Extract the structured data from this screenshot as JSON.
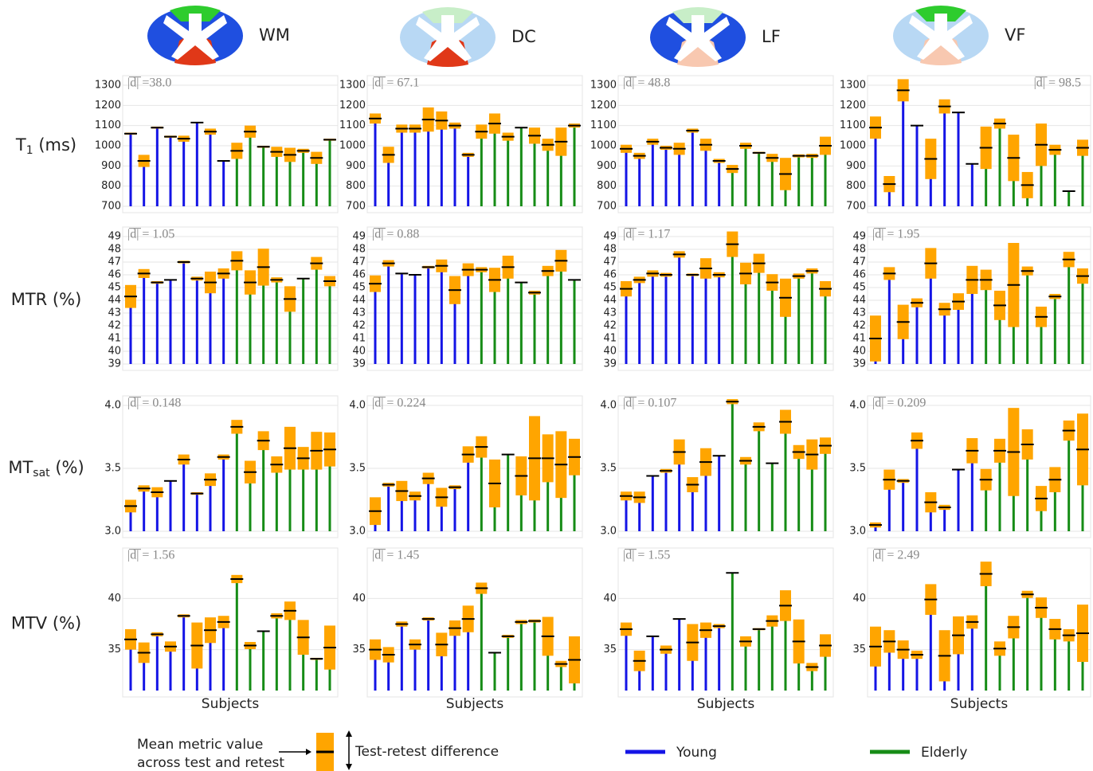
{
  "columns": [
    "WM",
    "DC",
    "LF",
    "VF"
  ],
  "rows": [
    {
      "main": "T",
      "sub": "1",
      "unit": " (ms)"
    },
    {
      "main": "MTR (%)"
    },
    {
      "main": "MT",
      "sub": "sat",
      "unit": " (%)"
    },
    {
      "main": "MTV (%)"
    }
  ],
  "legend": {
    "mean_label": [
      "Mean metric value",
      "across test and retest"
    ],
    "diff_label": "Test-retest difference",
    "box_color": "#ffa500",
    "series": [
      {
        "name": "Young",
        "color": "#1414e6"
      },
      {
        "name": "Elderly",
        "color": "#168c16"
      }
    ]
  },
  "chart_data": [
    {
      "type": "bar",
      "annotation": "|d| =38.0",
      "ylim": [
        700,
        1300
      ],
      "yticks": [
        700,
        800,
        900,
        1000,
        1100,
        1200,
        1300
      ],
      "series": [
        {
          "values": [
            1060,
            925,
            1090,
            1045,
            1035,
            1115,
            1070,
            925
          ],
          "errors": [
            10,
            60,
            10,
            10,
            30,
            5,
            30,
            5
          ]
        },
        {
          "values": [
            975,
            1070,
            995,
            970,
            955,
            975,
            940,
            1030
          ],
          "errors": [
            80,
            60,
            10,
            50,
            70,
            20,
            60,
            10
          ]
        }
      ]
    },
    {
      "type": "bar",
      "annotation": "|d| = 67.1",
      "ylim": [
        700,
        1300
      ],
      "yticks": [
        700,
        800,
        900,
        1000,
        1100,
        1200,
        1300
      ],
      "series": [
        {
          "values": [
            1135,
            955,
            1085,
            1085,
            1130,
            1125,
            1100,
            955
          ],
          "errors": [
            50,
            80,
            40,
            40,
            120,
            90,
            30,
            20
          ]
        },
        {
          "values": [
            1070,
            1110,
            1045,
            1090,
            1050,
            1005,
            1020,
            1100
          ],
          "errors": [
            70,
            100,
            40,
            5,
            80,
            60,
            140,
            20
          ]
        }
      ]
    },
    {
      "type": "bar",
      "annotation": "|d| = 48.8",
      "ylim": [
        700,
        1300
      ],
      "yticks": [
        700,
        800,
        900,
        1000,
        1100,
        1200,
        1300
      ],
      "series": [
        {
          "values": [
            985,
            950,
            1020,
            990,
            985,
            1075,
            1005,
            925
          ],
          "errors": [
            40,
            30,
            30,
            20,
            60,
            20,
            60,
            20
          ]
        },
        {
          "values": [
            885,
            1000,
            965,
            940,
            860,
            950,
            950,
            1000
          ],
          "errors": [
            40,
            30,
            10,
            40,
            160,
            15,
            20,
            90
          ]
        }
      ]
    },
    {
      "type": "bar",
      "annotation": "|d| = 98.5",
      "annotation_corner": "top-right",
      "ylim": [
        700,
        1300
      ],
      "yticks": [
        700,
        800,
        900,
        1000,
        1100,
        1200,
        1300
      ],
      "series": [
        {
          "values": [
            1090,
            810,
            1275,
            1100,
            935,
            1195,
            1165,
            910
          ],
          "errors": [
            110,
            80,
            110,
            5,
            200,
            70,
            5,
            5
          ]
        },
        {
          "values": [
            990,
            1110,
            940,
            805,
            1005,
            980,
            775,
            990
          ],
          "errors": [
            210,
            50,
            230,
            130,
            210,
            50,
            5,
            80
          ]
        }
      ]
    },
    {
      "type": "bar",
      "annotation": "|d| = 1.05",
      "ylim": [
        39,
        49
      ],
      "yticks": [
        39,
        40,
        41,
        42,
        43,
        44,
        45,
        46,
        47,
        48,
        49
      ],
      "series": [
        {
          "values": [
            44.3,
            46.1,
            45.4,
            45.6,
            47.0,
            45.7,
            45.4,
            46.1
          ],
          "errors": [
            1.8,
            0.7,
            0.2,
            0.1,
            0.2,
            0.3,
            1.7,
            0.8
          ]
        },
        {
          "values": [
            47.1,
            45.4,
            46.6,
            45.6,
            44.1,
            45.7,
            46.9,
            45.5
          ],
          "errors": [
            1.5,
            1.9,
            2.9,
            0.4,
            2.0,
            0.1,
            1.0,
            0.8
          ]
        }
      ]
    },
    {
      "type": "bar",
      "annotation": "|d| = 0.88",
      "ylim": [
        39,
        49
      ],
      "yticks": [
        39,
        40,
        41,
        42,
        43,
        44,
        45,
        46,
        47,
        48,
        49
      ],
      "series": [
        {
          "values": [
            45.3,
            46.9,
            46.1,
            46.0,
            46.6,
            46.7,
            44.8,
            46.4
          ],
          "errors": [
            1.3,
            0.5,
            0.1,
            0.1,
            0.2,
            1.0,
            2.2,
            1.0
          ]
        },
        {
          "values": [
            46.4,
            45.6,
            46.6,
            45.4,
            44.6,
            46.3,
            47.1,
            45.6
          ],
          "errors": [
            0.4,
            1.9,
            1.8,
            0.1,
            0.3,
            0.8,
            1.7,
            0.1
          ]
        }
      ]
    },
    {
      "type": "bar",
      "annotation": "|d| = 1.17",
      "ylim": [
        39,
        49
      ],
      "yticks": [
        39,
        40,
        41,
        42,
        43,
        44,
        45,
        46,
        47,
        48,
        49
      ],
      "series": [
        {
          "values": [
            44.9,
            45.6,
            46.1,
            46.0,
            47.6,
            46.0,
            46.5,
            46.0
          ],
          "errors": [
            1.2,
            0.5,
            0.5,
            0.3,
            0.5,
            0.2,
            1.6,
            0.4
          ]
        },
        {
          "values": [
            48.4,
            46.1,
            46.9,
            45.4,
            44.2,
            45.9,
            46.3,
            44.9
          ],
          "errors": [
            2.0,
            1.7,
            1.5,
            1.3,
            3.0,
            0.4,
            0.4,
            1.2
          ]
        }
      ]
    },
    {
      "type": "bar",
      "annotation": "|d| = 1.95",
      "ylim": [
        39,
        49
      ],
      "yticks": [
        39,
        40,
        41,
        42,
        43,
        44,
        45,
        46,
        47,
        48,
        49
      ],
      "series": [
        {
          "values": [
            41.0,
            46.1,
            42.3,
            43.8,
            46.9,
            43.3,
            43.9,
            45.6
          ],
          "errors": [
            3.6,
            1.0,
            2.7,
            0.7,
            2.4,
            1.0,
            1.3,
            2.2
          ]
        },
        {
          "values": [
            45.6,
            43.6,
            45.2,
            46.3,
            42.7,
            44.3,
            47.2,
            45.9
          ],
          "errors": [
            1.6,
            2.3,
            6.6,
            0.7,
            1.6,
            0.4,
            1.2,
            1.2
          ]
        }
      ]
    },
    {
      "type": "bar",
      "annotation": "|d| = 0.148",
      "ylim": [
        3.0,
        4.0
      ],
      "yticks": [
        {
          "value": 3.0,
          "label": "3.0"
        },
        3.5,
        {
          "value": 4.0,
          "label": "4.0"
        }
      ],
      "series": [
        {
          "values": [
            3.2,
            3.34,
            3.31,
            3.4,
            3.57,
            3.3,
            3.41,
            3.59
          ],
          "errors": [
            0.1,
            0.05,
            0.08,
            0.01,
            0.08,
            0.02,
            0.1,
            0.04
          ]
        },
        {
          "values": [
            3.83,
            3.47,
            3.72,
            3.53,
            3.66,
            3.58,
            3.64,
            3.65
          ],
          "errors": [
            0.11,
            0.18,
            0.15,
            0.13,
            0.34,
            0.18,
            0.3,
            0.27
          ]
        }
      ]
    },
    {
      "type": "bar",
      "annotation": "|d| = 0.224",
      "ylim": [
        3.0,
        4.0
      ],
      "yticks": [
        {
          "value": 3.0,
          "label": "3.0"
        },
        3.5,
        {
          "value": 4.0,
          "label": "4.0"
        }
      ],
      "series": [
        {
          "values": [
            3.16,
            3.37,
            3.32,
            3.28,
            3.42,
            3.27,
            3.35,
            3.61
          ],
          "errors": [
            0.22,
            0.03,
            0.16,
            0.07,
            0.09,
            0.15,
            0.03,
            0.13
          ]
        },
        {
          "values": [
            3.67,
            3.38,
            3.61,
            3.44,
            3.58,
            3.58,
            3.53,
            3.59
          ],
          "errors": [
            0.17,
            0.38,
            0.01,
            0.31,
            0.67,
            0.38,
            0.53,
            0.29
          ]
        }
      ]
    },
    {
      "type": "bar",
      "annotation": "|d| = 0.107",
      "ylim": [
        3.0,
        4.0
      ],
      "yticks": [
        {
          "value": 3.0,
          "label": "3.0"
        },
        3.5,
        {
          "value": 4.0,
          "label": "4.0"
        }
      ],
      "series": [
        {
          "values": [
            3.28,
            3.27,
            3.44,
            3.48,
            3.63,
            3.37,
            3.55,
            3.6
          ],
          "errors": [
            0.07,
            0.09,
            0.01,
            0.03,
            0.2,
            0.12,
            0.22,
            0.01
          ]
        },
        {
          "values": [
            4.03,
            3.56,
            3.83,
            3.54,
            3.87,
            3.63,
            3.61,
            3.68
          ],
          "errors": [
            0.04,
            0.06,
            0.07,
            0.01,
            0.19,
            0.11,
            0.24,
            0.13
          ]
        }
      ]
    },
    {
      "type": "bar",
      "annotation": "|d| = 0.209",
      "ylim": [
        3.0,
        4.0
      ],
      "yticks": [
        {
          "value": 3.0,
          "label": "3.0"
        },
        3.5,
        {
          "value": 4.0,
          "label": "4.0"
        }
      ],
      "series": [
        {
          "values": [
            3.05,
            3.41,
            3.4,
            3.72,
            3.23,
            3.19,
            3.49,
            3.64
          ],
          "errors": [
            0.04,
            0.16,
            0.03,
            0.13,
            0.16,
            0.04,
            0.01,
            0.2
          ]
        },
        {
          "values": [
            3.41,
            3.64,
            3.63,
            3.69,
            3.26,
            3.41,
            3.8,
            3.65
          ],
          "errors": [
            0.17,
            0.19,
            0.7,
            0.24,
            0.2,
            0.2,
            0.16,
            0.57
          ]
        }
      ]
    },
    {
      "type": "bar",
      "annotation": "|d| = 1.56",
      "xlabel": "Subjects",
      "ylim": [
        31,
        44
      ],
      "yticks": [
        35,
        40
      ],
      "series": [
        {
          "values": [
            36.0,
            34.7,
            36.5,
            35.3,
            38.3,
            35.4,
            36.9,
            37.7
          ],
          "errors": [
            2.0,
            2.0,
            0.4,
            1.0,
            0.3,
            4.5,
            2.5,
            1.2
          ]
        },
        {
          "values": [
            41.9,
            35.4,
            36.8,
            38.3,
            38.8,
            36.2,
            34.1,
            35.2
          ],
          "errors": [
            0.8,
            0.7,
            0.1,
            0.5,
            1.8,
            3.4,
            0.2,
            4.3
          ]
        }
      ]
    },
    {
      "type": "bar",
      "annotation": "|d| = 1.45",
      "xlabel": "Subjects",
      "ylim": [
        31,
        44
      ],
      "yticks": [
        35,
        40
      ],
      "series": [
        {
          "values": [
            35.0,
            34.5,
            37.5,
            35.5,
            38.0,
            35.5,
            37.1,
            38.0
          ],
          "errors": [
            2.0,
            1.5,
            0.5,
            1.0,
            0.3,
            2.3,
            1.5,
            2.6
          ]
        },
        {
          "values": [
            41.0,
            34.7,
            36.3,
            37.7,
            37.8,
            36.3,
            33.6,
            34.0
          ],
          "errors": [
            1.1,
            0.1,
            0.3,
            0.4,
            0.3,
            3.8,
            0.6,
            4.6
          ]
        }
      ]
    },
    {
      "type": "bar",
      "annotation": "|d| = 1.55",
      "xlabel": "Subjects",
      "ylim": [
        31,
        44
      ],
      "yticks": [
        35,
        40
      ],
      "series": [
        {
          "values": [
            37.0,
            33.9,
            36.3,
            35.0,
            38.0,
            35.7,
            36.9,
            37.3
          ],
          "errors": [
            1.3,
            2.0,
            0.1,
            0.8,
            0.1,
            3.6,
            1.5,
            0.4
          ]
        },
        {
          "values": [
            42.5,
            35.8,
            37.0,
            37.8,
            39.3,
            35.8,
            33.3,
            35.4
          ],
          "errors": [
            0.05,
            1.0,
            0.2,
            1.1,
            3.0,
            4.3,
            0.8,
            2.2
          ]
        }
      ]
    },
    {
      "type": "bar",
      "annotation": "|d| = 2.49",
      "xlabel": "Subjects",
      "ylim": [
        31,
        44
      ],
      "yticks": [
        35,
        40
      ],
      "series": [
        {
          "values": [
            35.3,
            35.8,
            35.0,
            34.5,
            39.9,
            34.4,
            36.4,
            37.7
          ],
          "errors": [
            3.9,
            2.2,
            1.8,
            0.8,
            3.0,
            5.0,
            3.7,
            1.3
          ]
        },
        {
          "values": [
            42.4,
            35.1,
            37.2,
            40.4,
            39.1,
            37.0,
            36.4,
            36.6
          ],
          "errors": [
            2.4,
            1.4,
            2.2,
            0.7,
            2.0,
            2.0,
            1.2,
            5.6
          ]
        }
      ]
    }
  ]
}
